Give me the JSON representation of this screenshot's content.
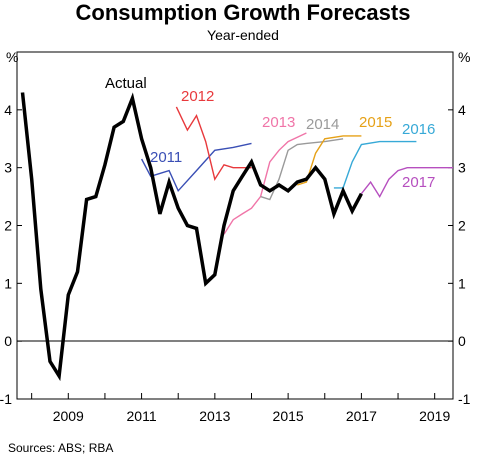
{
  "chart_data": {
    "type": "line",
    "title": "Consumption Growth Forecasts",
    "subtitle": "Year-ended",
    "y_unit_left": "%",
    "y_unit_right": "%",
    "ylim": [
      -1,
      5
    ],
    "yticks": [
      -1,
      0,
      1,
      2,
      3,
      4
    ],
    "xlim": [
      2007.6,
      2019.5
    ],
    "xticks": [
      "2009",
      "2011",
      "2013",
      "2015",
      "2017",
      "2019"
    ],
    "xtick_values": [
      2009,
      2011,
      2013,
      2015,
      2017,
      2019
    ],
    "source": "Sources:   ABS; RBA",
    "grid": false,
    "series": [
      {
        "name": "Actual",
        "color": "#000000",
        "x": [
          2007.75,
          2008.0,
          2008.25,
          2008.5,
          2008.75,
          2009.0,
          2009.25,
          2009.5,
          2009.75,
          2010.0,
          2010.25,
          2010.5,
          2010.75,
          2011.0,
          2011.25,
          2011.5,
          2011.75,
          2012.0,
          2012.25,
          2012.5,
          2012.75,
          2013.0,
          2013.25,
          2013.5,
          2013.75,
          2014.0,
          2014.25,
          2014.5,
          2014.75,
          2015.0,
          2015.25,
          2015.5,
          2015.75,
          2016.0,
          2016.25,
          2016.5,
          2016.75,
          2017.0
        ],
        "y": [
          4.3,
          2.8,
          0.9,
          -0.35,
          -0.6,
          0.8,
          1.2,
          2.45,
          2.5,
          3.05,
          3.7,
          3.8,
          4.2,
          3.5,
          3.0,
          2.2,
          2.75,
          2.3,
          2.0,
          1.95,
          1.0,
          1.15,
          2.0,
          2.6,
          2.85,
          3.1,
          2.7,
          2.6,
          2.7,
          2.6,
          2.75,
          2.8,
          3.0,
          2.8,
          2.2,
          2.6,
          2.25,
          2.55
        ]
      },
      {
        "name": "2011",
        "color": "#3a4fb5",
        "x": [
          2011.0,
          2011.25,
          2011.5,
          2011.75,
          2012.0,
          2012.5,
          2013.0,
          2013.5,
          2014.0
        ],
        "y": [
          3.15,
          2.85,
          2.9,
          2.95,
          2.6,
          2.95,
          3.3,
          3.35,
          3.42
        ]
      },
      {
        "name": "2012",
        "color": "#e8393c",
        "x": [
          2011.95,
          2012.25,
          2012.5,
          2012.75,
          2013.0,
          2013.25,
          2013.5,
          2014.0
        ],
        "y": [
          4.05,
          3.65,
          3.9,
          3.45,
          2.8,
          3.05,
          3.0,
          3.0
        ]
      },
      {
        "name": "2013",
        "color": "#f075a8",
        "x": [
          2013.25,
          2013.5,
          2013.75,
          2014.0,
          2014.25,
          2014.5,
          2014.75,
          2015.0,
          2015.5
        ],
        "y": [
          1.85,
          2.1,
          2.2,
          2.3,
          2.5,
          3.1,
          3.3,
          3.45,
          3.6
        ]
      },
      {
        "name": "2014",
        "color": "#9a9a9a",
        "x": [
          2014.25,
          2014.5,
          2014.75,
          2015.0,
          2015.25,
          2015.5,
          2016.0,
          2016.5
        ],
        "y": [
          2.5,
          2.45,
          2.8,
          3.3,
          3.4,
          3.42,
          3.45,
          3.5
        ]
      },
      {
        "name": "2015",
        "color": "#e6a117",
        "x": [
          2015.25,
          2015.5,
          2015.75,
          2016.0,
          2016.5,
          2017.0
        ],
        "y": [
          2.7,
          2.75,
          3.25,
          3.5,
          3.55,
          3.55
        ]
      },
      {
        "name": "2016",
        "color": "#37a9d7",
        "x": [
          2016.25,
          2016.5,
          2016.75,
          2017.0,
          2017.5,
          2018.0,
          2018.5
        ],
        "y": [
          2.65,
          2.65,
          3.1,
          3.4,
          3.45,
          3.45,
          3.45
        ]
      },
      {
        "name": "2017",
        "color": "#b64fbf",
        "x": [
          2017.0,
          2017.25,
          2017.5,
          2017.75,
          2018.0,
          2018.25,
          2018.5,
          2019.0,
          2019.5
        ],
        "y": [
          2.55,
          2.75,
          2.5,
          2.8,
          2.95,
          3.0,
          3.0,
          3.0,
          3.0
        ]
      }
    ],
    "series_labels": [
      {
        "text": "Actual",
        "color": "#000000"
      },
      {
        "text": "2011",
        "color": "#3a4fb5"
      },
      {
        "text": "2012",
        "color": "#e8393c"
      },
      {
        "text": "2013",
        "color": "#f075a8"
      },
      {
        "text": "2014",
        "color": "#9a9a9a"
      },
      {
        "text": "2015",
        "color": "#e6a117"
      },
      {
        "text": "2016",
        "color": "#37a9d7"
      },
      {
        "text": "2017",
        "color": "#b64fbf"
      }
    ]
  }
}
